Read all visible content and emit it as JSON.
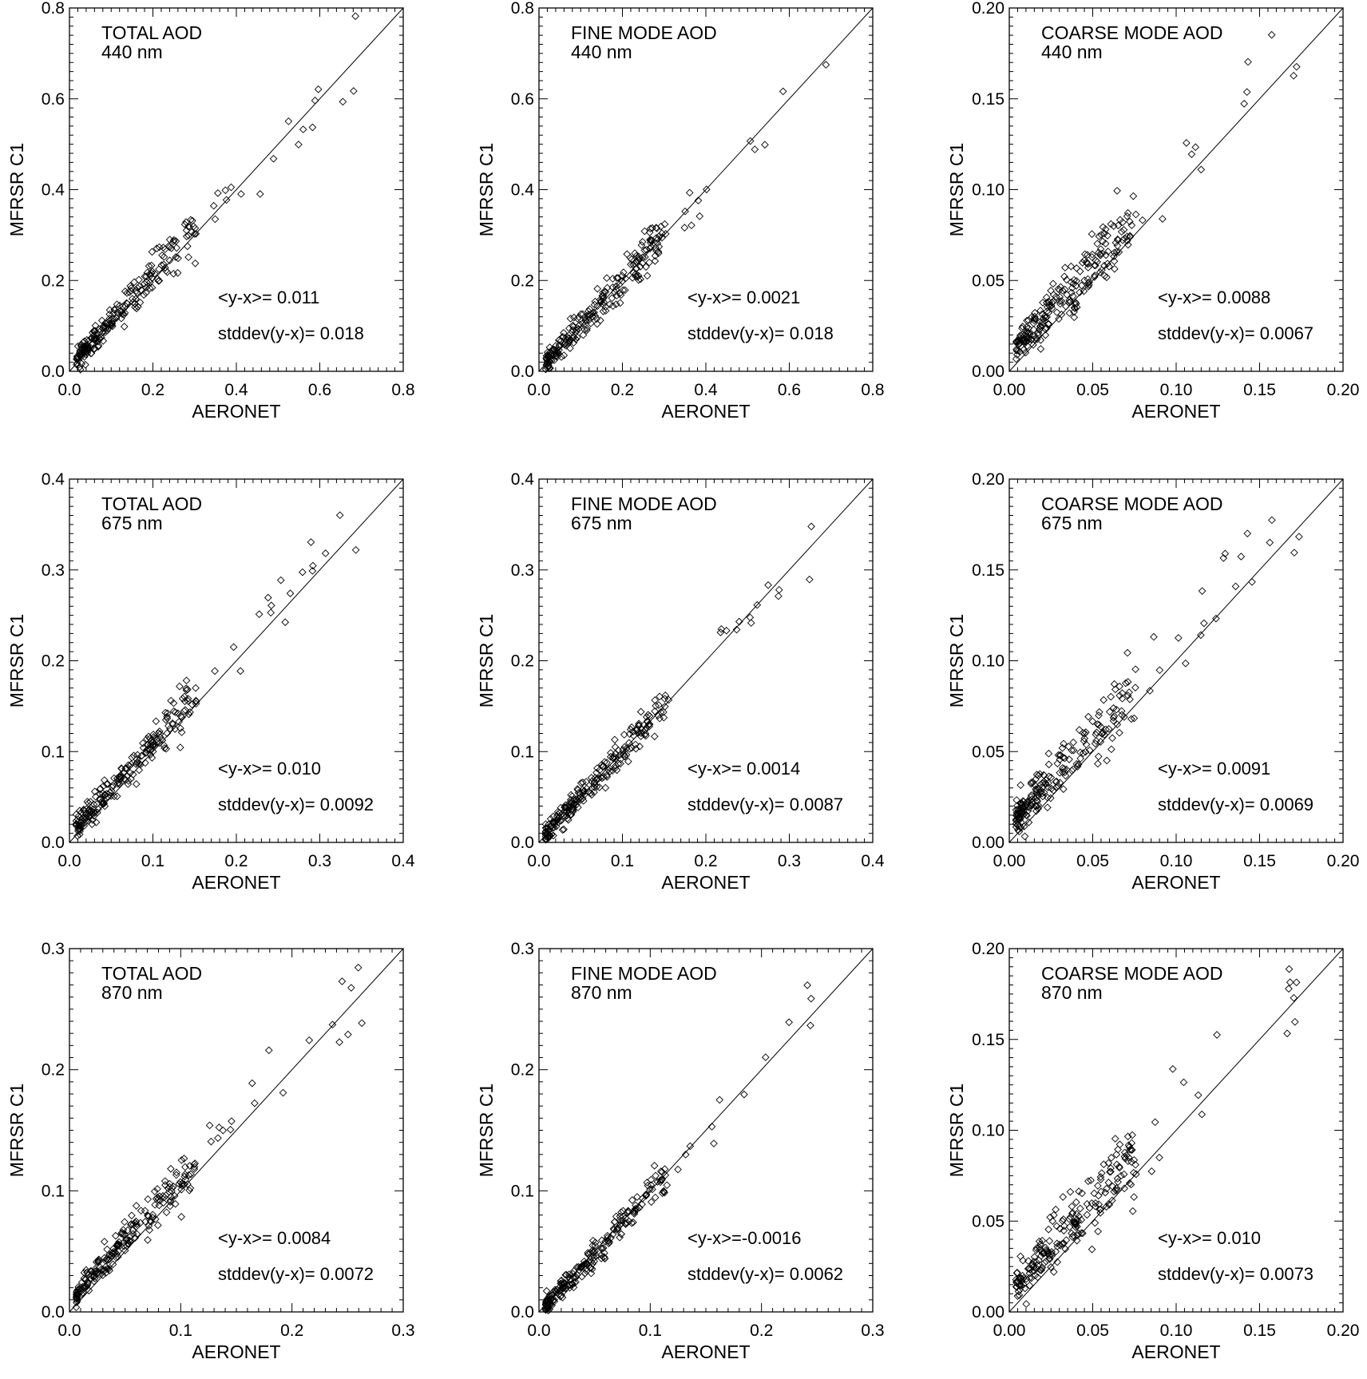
{
  "chart_data": [
    {
      "type": "scatter",
      "title": "TOTAL AOD",
      "subtitle": "440 nm",
      "xlabel": "AERONET",
      "ylabel": "MFRSR C1",
      "xlim": [
        0,
        0.8
      ],
      "ylim": [
        0,
        0.8
      ],
      "xticks": [
        "0.0",
        "0.2",
        "0.4",
        "0.6",
        "0.8"
      ],
      "yticks": [
        "0.0",
        "0.2",
        "0.4",
        "0.6",
        "0.8"
      ],
      "mean_label": "<y-x>=  0.011",
      "std_label": "stddev(y-x)=  0.018",
      "bias": 0.011,
      "spread": 0.018,
      "n": 230,
      "seed": 11
    },
    {
      "type": "scatter",
      "title": "FINE MODE AOD",
      "subtitle": "440 nm",
      "xlabel": "AERONET",
      "ylabel": "MFRSR C1",
      "xlim": [
        0,
        0.8
      ],
      "ylim": [
        0,
        0.8
      ],
      "xticks": [
        "0.0",
        "0.2",
        "0.4",
        "0.6",
        "0.8"
      ],
      "yticks": [
        "0.0",
        "0.2",
        "0.4",
        "0.6",
        "0.8"
      ],
      "mean_label": "<y-x>= 0.0021",
      "std_label": "stddev(y-x)=  0.018",
      "bias": 0.0021,
      "spread": 0.018,
      "n": 230,
      "seed": 12
    },
    {
      "type": "scatter",
      "title": "COARSE MODE AOD",
      "subtitle": "440 nm",
      "xlabel": "AERONET",
      "ylabel": "MFRSR C1",
      "xlim": [
        0,
        0.2
      ],
      "ylim": [
        0,
        0.2
      ],
      "xticks": [
        "0.00",
        "0.05",
        "0.10",
        "0.15",
        "0.20"
      ],
      "yticks": [
        "0.00",
        "0.05",
        "0.10",
        "0.15",
        "0.20"
      ],
      "mean_label": "<y-x>= 0.0088",
      "std_label": "stddev(y-x)= 0.0067",
      "bias": 0.0088,
      "spread": 0.0067,
      "n": 230,
      "seed": 13
    },
    {
      "type": "scatter",
      "title": "TOTAL AOD",
      "subtitle": "675 nm",
      "xlabel": "AERONET",
      "ylabel": "MFRSR C1",
      "xlim": [
        0,
        0.4
      ],
      "ylim": [
        0,
        0.4
      ],
      "xticks": [
        "0.0",
        "0.1",
        "0.2",
        "0.3",
        "0.4"
      ],
      "yticks": [
        "0.0",
        "0.1",
        "0.2",
        "0.3",
        "0.4"
      ],
      "mean_label": "<y-x>=  0.010",
      "std_label": "stddev(y-x)= 0.0092",
      "bias": 0.01,
      "spread": 0.0092,
      "n": 230,
      "seed": 21
    },
    {
      "type": "scatter",
      "title": "FINE MODE AOD",
      "subtitle": "675 nm",
      "xlabel": "AERONET",
      "ylabel": "MFRSR C1",
      "xlim": [
        0,
        0.4
      ],
      "ylim": [
        0,
        0.4
      ],
      "xticks": [
        "0.0",
        "0.1",
        "0.2",
        "0.3",
        "0.4"
      ],
      "yticks": [
        "0.0",
        "0.1",
        "0.2",
        "0.3",
        "0.4"
      ],
      "mean_label": "<y-x>= 0.0014",
      "std_label": "stddev(y-x)= 0.0087",
      "bias": 0.0014,
      "spread": 0.0087,
      "n": 230,
      "seed": 22
    },
    {
      "type": "scatter",
      "title": "COARSE MODE AOD",
      "subtitle": "675 nm",
      "xlabel": "AERONET",
      "ylabel": "MFRSR C1",
      "xlim": [
        0,
        0.2
      ],
      "ylim": [
        0,
        0.2
      ],
      "xticks": [
        "0.00",
        "0.05",
        "0.10",
        "0.15",
        "0.20"
      ],
      "yticks": [
        "0.00",
        "0.05",
        "0.10",
        "0.15",
        "0.20"
      ],
      "mean_label": "<y-x>= 0.0091",
      "std_label": "stddev(y-x)= 0.0069",
      "bias": 0.0091,
      "spread": 0.0069,
      "n": 230,
      "seed": 23
    },
    {
      "type": "scatter",
      "title": "TOTAL AOD",
      "subtitle": "870 nm",
      "xlabel": "AERONET",
      "ylabel": "MFRSR C1",
      "xlim": [
        0,
        0.3
      ],
      "ylim": [
        0,
        0.3
      ],
      "xticks": [
        "0.0",
        "0.1",
        "0.2",
        "0.3"
      ],
      "yticks": [
        "0.0",
        "0.1",
        "0.2",
        "0.3"
      ],
      "mean_label": "<y-x>= 0.0084",
      "std_label": "stddev(y-x)= 0.0072",
      "bias": 0.0084,
      "spread": 0.0072,
      "n": 230,
      "seed": 31
    },
    {
      "type": "scatter",
      "title": "FINE MODE AOD",
      "subtitle": "870 nm",
      "xlabel": "AERONET",
      "ylabel": "MFRSR C1",
      "xlim": [
        0,
        0.3
      ],
      "ylim": [
        0,
        0.3
      ],
      "xticks": [
        "0.0",
        "0.1",
        "0.2",
        "0.3"
      ],
      "yticks": [
        "0.0",
        "0.1",
        "0.2",
        "0.3"
      ],
      "mean_label": "<y-x>=-0.0016",
      "std_label": "stddev(y-x)= 0.0062",
      "bias": -0.0016,
      "spread": 0.0062,
      "n": 230,
      "seed": 32
    },
    {
      "type": "scatter",
      "title": "COARSE MODE AOD",
      "subtitle": "870 nm",
      "xlabel": "AERONET",
      "ylabel": "MFRSR C1",
      "xlim": [
        0,
        0.2
      ],
      "ylim": [
        0,
        0.2
      ],
      "xticks": [
        "0.00",
        "0.05",
        "0.10",
        "0.15",
        "0.20"
      ],
      "yticks": [
        "0.00",
        "0.05",
        "0.10",
        "0.15",
        "0.20"
      ],
      "mean_label": "<y-x>=  0.010",
      "std_label": "stddev(y-x)= 0.0073",
      "bias": 0.01,
      "spread": 0.0073,
      "n": 230,
      "seed": 33
    }
  ]
}
